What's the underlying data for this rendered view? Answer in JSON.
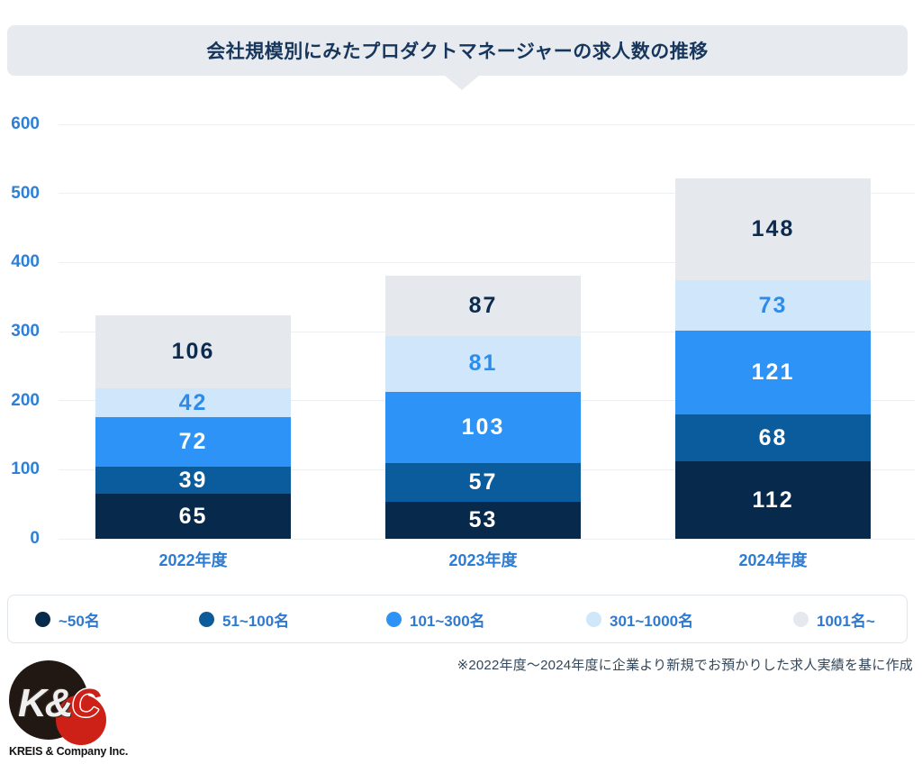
{
  "title": "会社規模別にみたプロダクトマネージャーの求人数の推移",
  "chart_data": {
    "type": "bar",
    "stacked": true,
    "title": "会社規模別にみたプロダクトマネージャーの求人数の推移",
    "categories": [
      "2022年度",
      "2023年度",
      "2024年度"
    ],
    "series": [
      {
        "name": "~50名",
        "color": "#07294b",
        "label_color": "#ffffff",
        "values": [
          65,
          53,
          112
        ]
      },
      {
        "name": "51~100名",
        "color": "#0b5c9d",
        "label_color": "#ffffff",
        "values": [
          39,
          57,
          68
        ]
      },
      {
        "name": "101~300名",
        "color": "#2e93f7",
        "label_color": "#ffffff",
        "values": [
          72,
          103,
          121
        ]
      },
      {
        "name": "301~1000名",
        "color": "#cfe6fb",
        "label_color": "#2e8ce8",
        "values": [
          42,
          81,
          73
        ]
      },
      {
        "name": "1001名~",
        "color": "#e5e8ec",
        "label_color": "#0d2b4e",
        "values": [
          106,
          87,
          148
        ]
      }
    ],
    "totals": [
      324,
      381,
      522
    ],
    "ylim": [
      0,
      600
    ],
    "yticks": [
      0,
      100,
      200,
      300,
      400,
      500,
      600
    ],
    "grid": true,
    "legend_position": "bottom",
    "value_labels": "inside-center"
  },
  "note": "※2022年度～2024年度に企業より新規でお預かりした求人実績を基に作成",
  "logo": {
    "monogram_left": "K&",
    "monogram_right": "C",
    "company": "KREIS & Company Inc.",
    "black": "#211713",
    "red": "#cd2016"
  },
  "colors": {
    "banner_bg": "#e7eaee",
    "title_text": "#17365c",
    "axis_text": "#2e7fd6",
    "gridline": "#edf0f3",
    "legend_text": "#2e7ad1",
    "note_text": "#33475a",
    "page_bg": "#ffffff"
  }
}
